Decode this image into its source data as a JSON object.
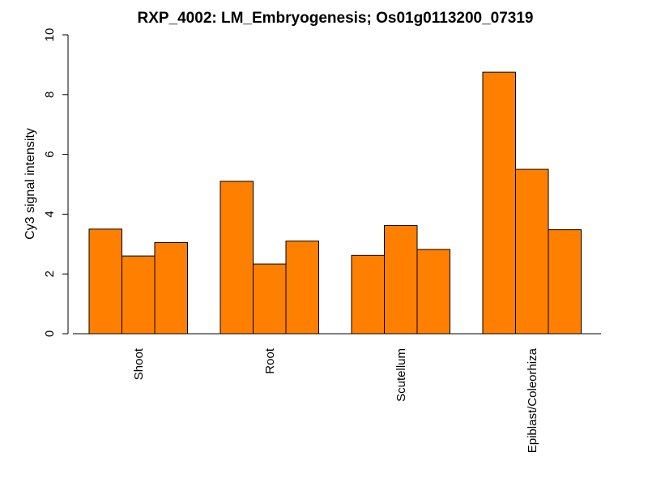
{
  "chart_data": {
    "type": "bar",
    "title": "RXP_4002: LM_Embryogenesis; Os01g0113200_07319",
    "xlabel": "",
    "ylabel": "Cy3 signal intensity",
    "ylim": [
      0,
      10
    ],
    "yticks": [
      0,
      2,
      4,
      6,
      8,
      10
    ],
    "grid": false,
    "legend": "none",
    "bar_color": "#FF7F00",
    "border_color": "#000000",
    "categories": [
      "Shoot",
      "Root",
      "Scutellum",
      "Epiblast/Coleorhiza"
    ],
    "values": [
      [
        3.5,
        2.6,
        3.05
      ],
      [
        5.1,
        2.33,
        3.1
      ],
      [
        2.62,
        3.62,
        2.82
      ],
      [
        8.75,
        5.5,
        3.48
      ]
    ]
  }
}
